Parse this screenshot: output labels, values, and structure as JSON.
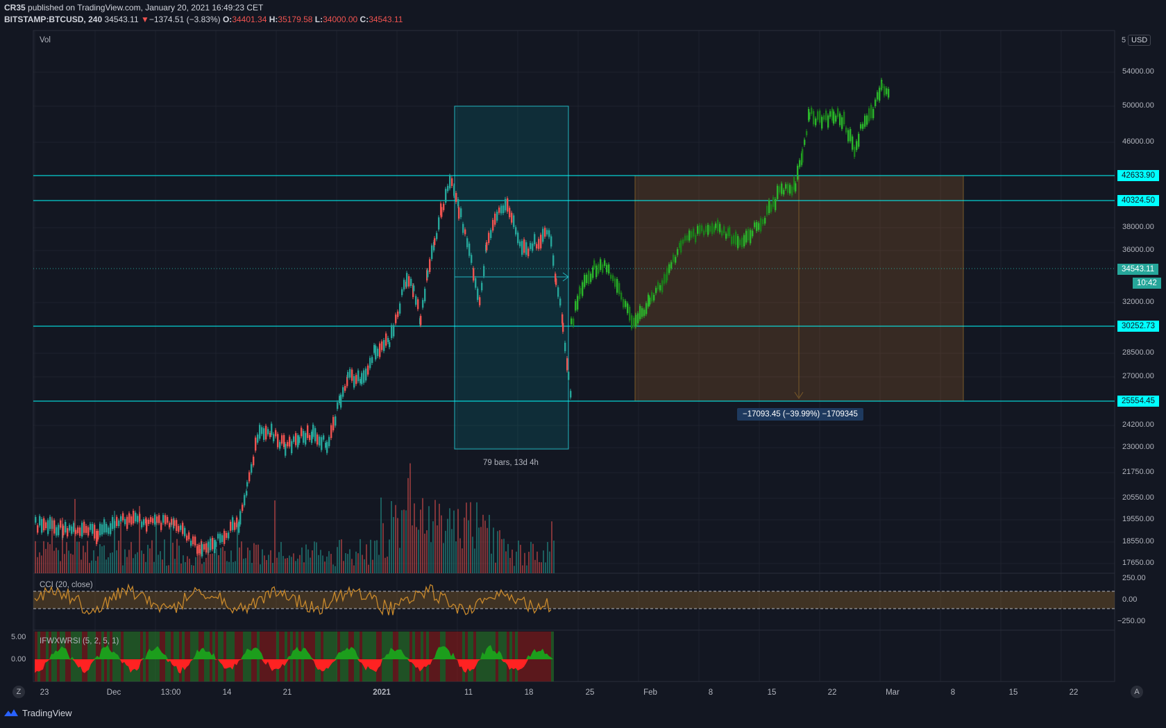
{
  "header": {
    "publisher": "CR35",
    "published_text": "published on TradingView.com, January 20, 2021 16:49:23 CET",
    "symbol": "BITSTAMP:BTCUSD, 240",
    "last": "34543.11",
    "change_arrow": "▼",
    "change": "−1374.51 (−3.83%)",
    "o_label": "O:",
    "o_value": "34401.34",
    "h_label": "H:",
    "h_value": "35179.58",
    "l_label": "L:",
    "l_value": "34000.00",
    "c_label": "C:",
    "c_value": "34543.11"
  },
  "volume_label": "Vol",
  "currency_button": "USD",
  "price_axis": {
    "top_partial": "5",
    "ticks": [
      {
        "label": "54000.00",
        "value": 54000
      },
      {
        "label": "50000.00",
        "value": 50000
      },
      {
        "label": "46000.00",
        "value": 46000
      },
      {
        "label": "38000.00",
        "value": 38000
      },
      {
        "label": "36000.00",
        "value": 36000
      },
      {
        "label": "32000.00",
        "value": 32000
      },
      {
        "label": "28500.00",
        "value": 28500
      },
      {
        "label": "27000.00",
        "value": 27000
      },
      {
        "label": "24200.00",
        "value": 24200
      },
      {
        "label": "23000.00",
        "value": 23000
      },
      {
        "label": "21750.00",
        "value": 21750
      },
      {
        "label": "20550.00",
        "value": 20550
      },
      {
        "label": "19550.00",
        "value": 19550
      },
      {
        "label": "18550.00",
        "value": 18550
      },
      {
        "label": "17650.00",
        "value": 17650
      }
    ]
  },
  "levels": [
    {
      "label": "42633.90",
      "value": 42633.9
    },
    {
      "label": "40324.50",
      "value": 40324.5
    },
    {
      "label": "30252.73",
      "value": 30252.73
    },
    {
      "label": "25554.45",
      "value": 25554.45
    }
  ],
  "current_price": {
    "label": "34543.11",
    "countdown": "10:42"
  },
  "measure_label": "−17093.45 (−39.99%) −1709345",
  "range_label": "79 bars, 13d 4h",
  "cci": {
    "label": "CCI (20, close)",
    "ticks": [
      "250.00",
      "0.00",
      "−250.00"
    ]
  },
  "ifwxwrsi": {
    "label": "IFWXWRSI (5, 2, 5, 1)",
    "ticks": [
      "5.00",
      "0.00"
    ]
  },
  "time_axis": [
    "23",
    "Dec",
    "13:00",
    "14",
    "21",
    "2021",
    "11",
    "18",
    "25",
    "Feb",
    "8",
    "15",
    "22",
    "Mar",
    "8",
    "15",
    "22"
  ],
  "buttons": {
    "zoom": "Z",
    "auto": "A"
  },
  "footer_brand": "TradingView",
  "colors": {
    "background": "#131722",
    "up": "#26a69a",
    "down": "#ef5350",
    "projection": "#1e8c1e",
    "level_line": "#00ffff",
    "cci_line": "#c8892c",
    "measure_box": "#1e3a5f"
  }
}
